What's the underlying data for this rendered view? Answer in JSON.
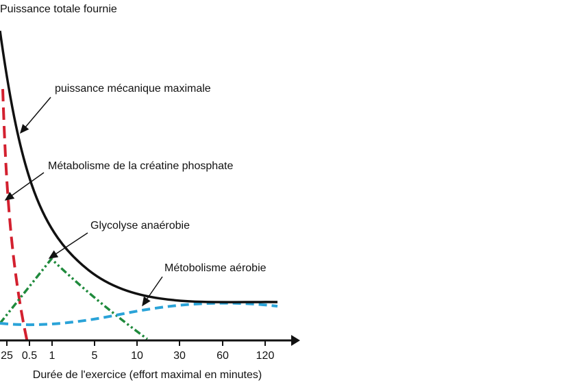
{
  "title": "Puissance totale fournie",
  "annotations": [
    "puissance mécanique maximale",
    "Métabolisme de la créatine phosphate",
    "Glycolyse anaérobie",
    "Métobolisme aérobie"
  ],
  "x_ticks": [
    "25",
    "0.5",
    "1",
    "5",
    "10",
    "30",
    "60",
    "120"
  ],
  "x_label": "Durée de l'exercice (effort maximal en minutes)"
}
